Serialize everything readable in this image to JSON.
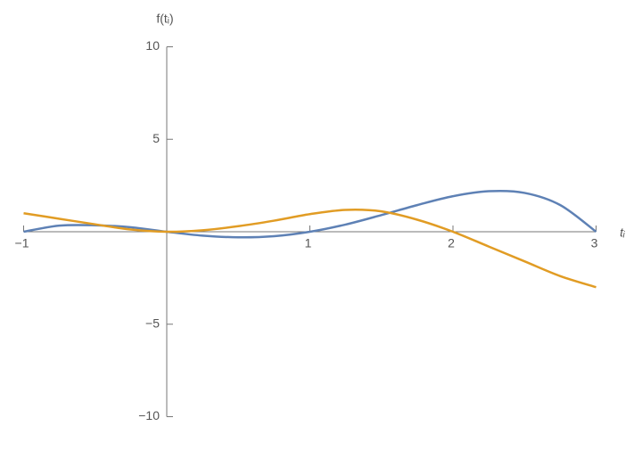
{
  "chart_data": {
    "type": "line",
    "x_label": "tᵢ",
    "y_label": "f(tᵢ)",
    "x": [
      -1,
      -0.75,
      -0.5,
      -0.25,
      0,
      0.25,
      0.5,
      0.75,
      1,
      1.25,
      1.5,
      1.75,
      2,
      2.25,
      2.5,
      2.75,
      3
    ],
    "series": [
      {
        "color": "#5e81b5",
        "values": [
          0,
          0.33,
          0.35,
          0.24,
          0,
          -0.21,
          -0.3,
          -0.24,
          0,
          0.39,
          0.9,
          1.44,
          1.92,
          2.19,
          2.1,
          1.44,
          0
        ]
      },
      {
        "color": "#e19c24",
        "values": [
          1.0,
          0.7,
          0.4,
          0.12,
          0,
          0.08,
          0.3,
          0.6,
          0.95,
          1.18,
          1.1,
          0.65,
          0,
          -0.8,
          -1.6,
          -2.4,
          -3.0
        ]
      }
    ],
    "xlim": [
      -1,
      3
    ],
    "ylim": [
      -10,
      10
    ],
    "xticks": [
      {
        "value": -1,
        "label": "−1"
      },
      1,
      2,
      3
    ],
    "yticks": [
      {
        "value": -10,
        "label": "−10"
      },
      {
        "value": -5,
        "label": "−5"
      },
      5,
      10
    ]
  }
}
